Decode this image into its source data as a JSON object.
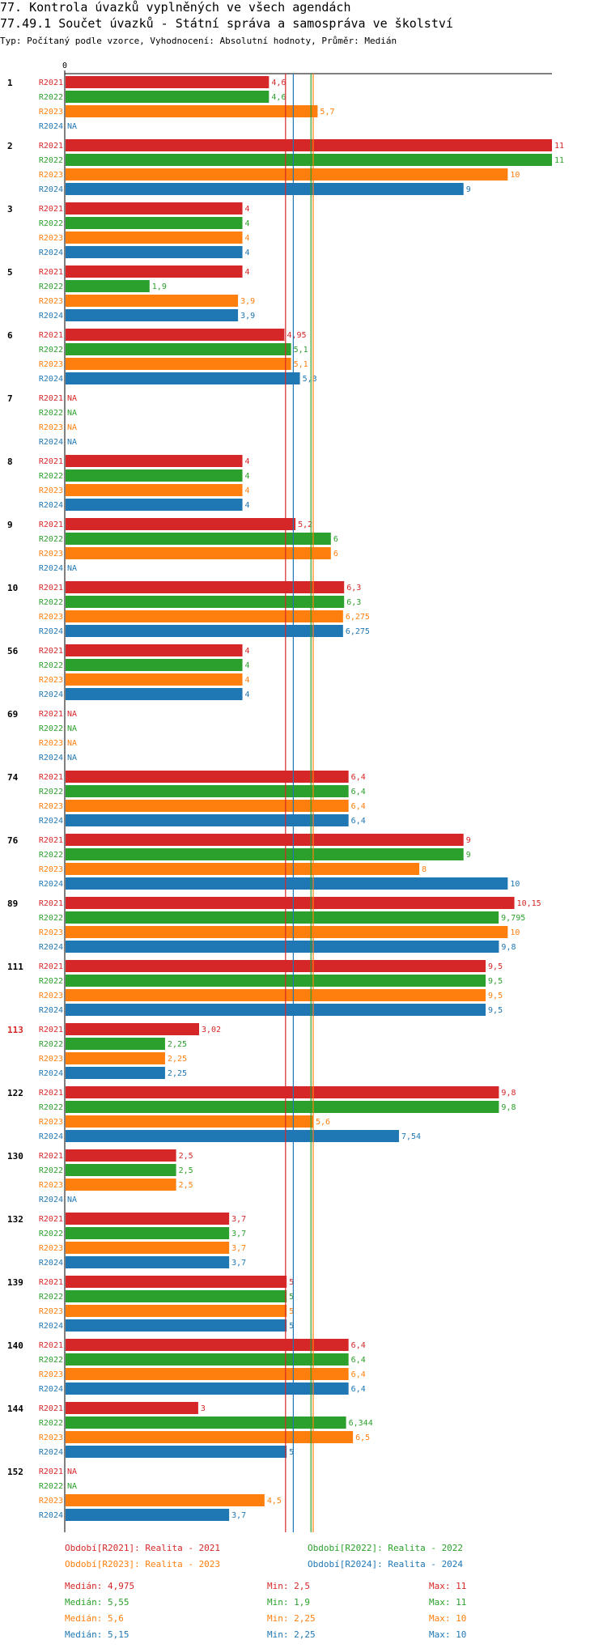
{
  "title": "77. Kontrola úvazků vyplněných ve všech agendách",
  "subtitle": "77.49.1 Součet úvazků - Státní správa a samospráva ve školství",
  "description": "Typ: Počítaný podle vzorce, Vyhodnocení: Absolutní hodnoty, Průměr: Medián",
  "colors": {
    "R2021": "#d62728",
    "R2022": "#2ca02c",
    "R2023": "#ff7f0e",
    "R2024": "#1f77b4",
    "highlight": "#d62728"
  },
  "chart_data": {
    "type": "bar",
    "orientation": "horizontal",
    "xlim": [
      0,
      11
    ],
    "x_tick_label": "0",
    "na_label": "NA",
    "series_names": [
      "R2021",
      "R2022",
      "R2023",
      "R2024"
    ],
    "groups": [
      {
        "id": "1",
        "values": [
          4.6,
          4.6,
          5.7,
          null
        ],
        "labels": [
          "4,6",
          "4,6",
          "5,7",
          "NA"
        ]
      },
      {
        "id": "2",
        "values": [
          11,
          11,
          10,
          9
        ],
        "labels": [
          "11",
          "11",
          "10",
          "9"
        ]
      },
      {
        "id": "3",
        "values": [
          4,
          4,
          4,
          4
        ],
        "labels": [
          "4",
          "4",
          "4",
          "4"
        ]
      },
      {
        "id": "5",
        "values": [
          4,
          1.9,
          3.9,
          3.9
        ],
        "labels": [
          "4",
          "1,9",
          "3,9",
          "3,9"
        ]
      },
      {
        "id": "6",
        "values": [
          4.95,
          5.1,
          5.1,
          5.3
        ],
        "labels": [
          "4,95",
          "5,1",
          "5,1",
          "5,3"
        ]
      },
      {
        "id": "7",
        "values": [
          null,
          null,
          null,
          null
        ],
        "labels": [
          "NA",
          "NA",
          "NA",
          "NA"
        ]
      },
      {
        "id": "8",
        "values": [
          4,
          4,
          4,
          4
        ],
        "labels": [
          "4",
          "4",
          "4",
          "4"
        ]
      },
      {
        "id": "9",
        "values": [
          5.2,
          6,
          6,
          null
        ],
        "labels": [
          "5,2",
          "6",
          "6",
          "NA"
        ]
      },
      {
        "id": "10",
        "values": [
          6.3,
          6.3,
          6.275,
          6.275
        ],
        "labels": [
          "6,3",
          "6,3",
          "6,275",
          "6,275"
        ]
      },
      {
        "id": "56",
        "values": [
          4,
          4,
          4,
          4
        ],
        "labels": [
          "4",
          "4",
          "4",
          "4"
        ]
      },
      {
        "id": "69",
        "values": [
          null,
          null,
          null,
          null
        ],
        "labels": [
          "NA",
          "NA",
          "NA",
          "NA"
        ]
      },
      {
        "id": "74",
        "values": [
          6.4,
          6.4,
          6.4,
          6.4
        ],
        "labels": [
          "6,4",
          "6,4",
          "6,4",
          "6,4"
        ]
      },
      {
        "id": "76",
        "values": [
          9,
          9,
          8,
          10
        ],
        "labels": [
          "9",
          "9",
          "8",
          "10"
        ]
      },
      {
        "id": "89",
        "values": [
          10.15,
          9.795,
          10,
          9.8
        ],
        "labels": [
          "10,15",
          "9,795",
          "10",
          "9,8"
        ]
      },
      {
        "id": "111",
        "values": [
          9.5,
          9.5,
          9.5,
          9.5
        ],
        "labels": [
          "9,5",
          "9,5",
          "9,5",
          "9,5"
        ]
      },
      {
        "id": "113",
        "values": [
          3.02,
          2.25,
          2.25,
          2.25
        ],
        "labels": [
          "3,02",
          "2,25",
          "2,25",
          "2,25"
        ],
        "highlight": true
      },
      {
        "id": "122",
        "values": [
          9.8,
          9.8,
          5.6,
          7.54
        ],
        "labels": [
          "9,8",
          "9,8",
          "5,6",
          "7,54"
        ]
      },
      {
        "id": "130",
        "values": [
          2.5,
          2.5,
          2.5,
          null
        ],
        "labels": [
          "2,5",
          "2,5",
          "2,5",
          "NA"
        ]
      },
      {
        "id": "132",
        "values": [
          3.7,
          3.7,
          3.7,
          3.7
        ],
        "labels": [
          "3,7",
          "3,7",
          "3,7",
          "3,7"
        ]
      },
      {
        "id": "139",
        "values": [
          5,
          5,
          5,
          5
        ],
        "labels": [
          "5",
          "5",
          "5",
          "5"
        ]
      },
      {
        "id": "140",
        "values": [
          6.4,
          6.4,
          6.4,
          6.4
        ],
        "labels": [
          "6,4",
          "6,4",
          "6,4",
          "6,4"
        ]
      },
      {
        "id": "144",
        "values": [
          3,
          6.344,
          6.5,
          5
        ],
        "labels": [
          "3",
          "6,344",
          "6,5",
          "5"
        ]
      },
      {
        "id": "152",
        "values": [
          null,
          null,
          4.5,
          3.7
        ],
        "labels": [
          "NA",
          "NA",
          "4,5",
          "3,7"
        ]
      }
    ],
    "median_lines": [
      4.975,
      5.55,
      5.6,
      5.15
    ]
  },
  "legend": [
    "Období[R2021]: Realita - 2021",
    "Období[R2022]: Realita - 2022",
    "Období[R2023]: Realita - 2023",
    "Období[R2024]: Realita - 2024"
  ],
  "stats": [
    {
      "median": "Medián: 4,975",
      "min": "Min: 2,5",
      "max": "Max: 11"
    },
    {
      "median": "Medián: 5,55",
      "min": "Min: 1,9",
      "max": "Max: 11"
    },
    {
      "median": "Medián: 5,6",
      "min": "Min: 2,25",
      "max": "Max: 10"
    },
    {
      "median": "Medián: 5,15",
      "min": "Min: 2,25",
      "max": "Max: 10"
    }
  ]
}
